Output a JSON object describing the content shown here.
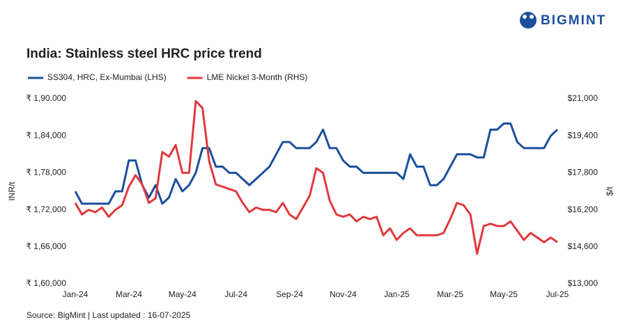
{
  "brand": "BIGMINT",
  "chart_data": {
    "type": "line",
    "title": "India: Stainless steel HRC price trend",
    "y_label": "INR/t",
    "y2_label": "$/t",
    "source": "Source: BigMint | Last updated : 16-07-2025",
    "categories": [
      "Jan-24",
      null,
      null,
      null,
      null,
      null,
      null,
      null,
      "Mar-24",
      null,
      null,
      null,
      null,
      null,
      null,
      null,
      "May-24",
      null,
      null,
      null,
      null,
      null,
      null,
      null,
      "Jul-24",
      null,
      null,
      null,
      null,
      null,
      null,
      null,
      "Sep-24",
      null,
      null,
      null,
      null,
      null,
      null,
      null,
      "Nov-24",
      null,
      null,
      null,
      null,
      null,
      null,
      null,
      "Jan-25",
      null,
      null,
      null,
      null,
      null,
      null,
      null,
      "Mar-25",
      null,
      null,
      null,
      null,
      null,
      null,
      null,
      "May-25",
      null,
      null,
      null,
      null,
      null,
      null,
      null,
      "Jul-25"
    ],
    "series": [
      {
        "name": "SS304, HRC, Ex-Mumbai (LHS)",
        "color": "#1b4f9c",
        "axis": "y",
        "values": [
          175000,
          173000,
          173000,
          173000,
          173000,
          173000,
          175000,
          175000,
          180000,
          180000,
          176000,
          174000,
          176000,
          173000,
          174000,
          177000,
          175000,
          176000,
          178000,
          182000,
          182000,
          179000,
          179000,
          178000,
          178000,
          177000,
          176000,
          177000,
          178000,
          179000,
          181000,
          183000,
          183000,
          182000,
          182000,
          182000,
          183000,
          185000,
          182000,
          182000,
          180000,
          179000,
          179000,
          178000,
          178000,
          178000,
          178000,
          178000,
          178000,
          177000,
          181000,
          179000,
          179000,
          176000,
          176000,
          177000,
          179000,
          181000,
          181000,
          181000,
          180500,
          180500,
          185000,
          185000,
          186000,
          186000,
          183000,
          182000,
          182000,
          182000,
          182000,
          184000,
          185000
        ]
      },
      {
        "name": "LME Nickel 3-Month (RHS)",
        "color": "#e0393e",
        "axis": "y2",
        "values": [
          16500,
          16000,
          16200,
          16100,
          16300,
          15900,
          16200,
          16400,
          17200,
          17700,
          17300,
          16500,
          16700,
          18700,
          18500,
          19000,
          17800,
          17800,
          20900,
          20600,
          18300,
          17300,
          17200,
          17100,
          17000,
          16500,
          16100,
          16300,
          16200,
          16200,
          16100,
          16500,
          16000,
          15800,
          16300,
          16800,
          18000,
          17800,
          16600,
          16000,
          15900,
          16000,
          15700,
          15900,
          15800,
          15900,
          15100,
          15400,
          14900,
          15200,
          15400,
          15100,
          15100,
          15100,
          15100,
          15200,
          15800,
          16500,
          16400,
          16000,
          14300,
          15500,
          15600,
          15500,
          15500,
          15700,
          15300,
          14900,
          15200,
          15000,
          14800,
          15000,
          14800
        ]
      }
    ],
    "ylim": [
      160000,
      190000
    ],
    "yticks": [
      {
        "value": 160000,
        "label": "₹ 1,60,000"
      },
      {
        "value": 166000,
        "label": "₹ 1,66,000"
      },
      {
        "value": 172000,
        "label": "₹ 1,72,000"
      },
      {
        "value": 178000,
        "label": "₹ 1,78,000"
      },
      {
        "value": 184000,
        "label": "₹ 1,84,000"
      },
      {
        "value": 190000,
        "label": "₹ 1,90,000"
      }
    ],
    "y2lim": [
      13000,
      21000
    ],
    "y2ticks": [
      {
        "value": 13000,
        "label": "$13,000"
      },
      {
        "value": 14600,
        "label": "$14,600"
      },
      {
        "value": 16200,
        "label": "$16,200"
      },
      {
        "value": 17800,
        "label": "$17,800"
      },
      {
        "value": 19400,
        "label": "$19,400"
      },
      {
        "value": 21000,
        "label": "$21,000"
      }
    ],
    "grid": false
  }
}
